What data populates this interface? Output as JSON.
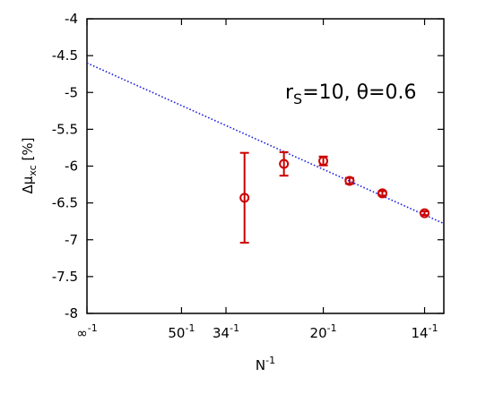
{
  "chart_data": {
    "type": "scatter",
    "xlabel": "N⁻¹",
    "ylabel": "Δμxc [%]",
    "ylabel_main": "Δμ",
    "ylabel_sub": "xc",
    "ylabel_rest": " [%]",
    "annotation": "r",
    "annotation_sub": "S",
    "annotation_rest": "=10, θ=0.6",
    "x_axis": "inverse N",
    "xlim": [
      0,
      0.0755
    ],
    "ylim": [
      -8,
      -4
    ],
    "grid": false,
    "x_ticks": [
      {
        "value": 0,
        "base": "∞",
        "exp": "-1"
      },
      {
        "value": 0.02,
        "base": "50",
        "exp": "-1"
      },
      {
        "value": 0.029412,
        "base": "34",
        "exp": "-1"
      },
      {
        "value": 0.05,
        "base": "20",
        "exp": "-1"
      },
      {
        "value": 0.071429,
        "base": "14",
        "exp": "-1"
      }
    ],
    "y_ticks": [
      {
        "value": -4,
        "label": "-4"
      },
      {
        "value": -4.5,
        "label": "-4.5"
      },
      {
        "value": -5,
        "label": "-5"
      },
      {
        "value": -5.5,
        "label": "-5.5"
      },
      {
        "value": -6,
        "label": "-6"
      },
      {
        "value": -6.5,
        "label": "-6.5"
      },
      {
        "value": -7,
        "label": "-7"
      },
      {
        "value": -7.5,
        "label": "-7.5"
      },
      {
        "value": -8,
        "label": "-8"
      }
    ],
    "series": [
      {
        "color": "#cc0000",
        "marker": "open-circle",
        "points": [
          {
            "x": 0.03333,
            "y": -6.43,
            "err": 0.61
          },
          {
            "x": 0.04167,
            "y": -5.97,
            "err": 0.16
          },
          {
            "x": 0.05,
            "y": -5.93,
            "err": 0.06
          },
          {
            "x": 0.05556,
            "y": -6.2,
            "err": 0.04
          },
          {
            "x": 0.0625,
            "y": -6.37,
            "err": 0.03
          },
          {
            "x": 0.07143,
            "y": -6.64,
            "err": 0.025
          }
        ]
      }
    ],
    "fit_line": {
      "color": "#2222dd",
      "style": "dotted",
      "x": [
        0,
        0.0755
      ],
      "y": [
        -4.6,
        -6.78
      ]
    }
  }
}
